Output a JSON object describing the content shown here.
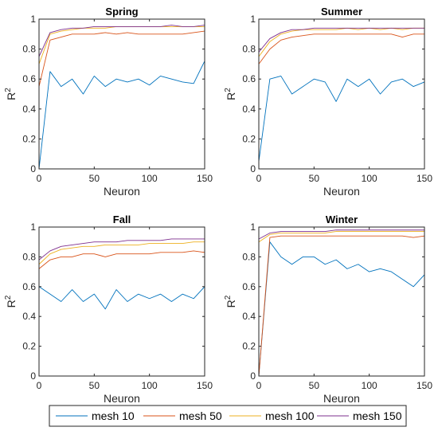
{
  "chart_data": [
    {
      "type": "line",
      "title": "Spring",
      "xlabel": "Neuron",
      "ylabel": "R",
      "ylabel_superscript": "2",
      "xlim": [
        0,
        150
      ],
      "ylim": [
        0,
        1
      ],
      "xticks": [
        "0",
        "50",
        "100",
        "150"
      ],
      "yticks": [
        "0",
        "0.2",
        "0.4",
        "0.6",
        "0.8",
        "1"
      ],
      "grid": false,
      "series": [
        {
          "name": "mesh 10",
          "x": [
            0,
            10,
            20,
            30,
            40,
            50,
            60,
            70,
            80,
            90,
            100,
            110,
            120,
            130,
            140,
            150
          ],
          "y": [
            0.0,
            0.65,
            0.55,
            0.6,
            0.5,
            0.62,
            0.55,
            0.6,
            0.58,
            0.6,
            0.56,
            0.62,
            0.6,
            0.58,
            0.57,
            0.72
          ]
        },
        {
          "name": "mesh 50",
          "x": [
            0,
            10,
            20,
            30,
            40,
            50,
            60,
            70,
            80,
            90,
            100,
            110,
            120,
            130,
            140,
            150
          ],
          "y": [
            0.55,
            0.86,
            0.88,
            0.9,
            0.9,
            0.9,
            0.91,
            0.9,
            0.91,
            0.9,
            0.9,
            0.9,
            0.9,
            0.9,
            0.91,
            0.92
          ]
        },
        {
          "name": "mesh 100",
          "x": [
            0,
            10,
            20,
            30,
            40,
            50,
            60,
            70,
            80,
            90,
            100,
            110,
            120,
            130,
            140,
            150
          ],
          "y": [
            0.7,
            0.9,
            0.92,
            0.93,
            0.94,
            0.94,
            0.94,
            0.95,
            0.95,
            0.95,
            0.95,
            0.95,
            0.95,
            0.95,
            0.95,
            0.95
          ]
        },
        {
          "name": "mesh 150",
          "x": [
            0,
            10,
            20,
            30,
            40,
            50,
            60,
            70,
            80,
            90,
            100,
            110,
            120,
            130,
            140,
            150
          ],
          "y": [
            0.75,
            0.91,
            0.93,
            0.94,
            0.94,
            0.95,
            0.95,
            0.95,
            0.95,
            0.95,
            0.95,
            0.95,
            0.96,
            0.95,
            0.95,
            0.96
          ]
        }
      ]
    },
    {
      "type": "line",
      "title": "Summer",
      "xlabel": "Neuron",
      "ylabel": "R",
      "ylabel_superscript": "2",
      "xlim": [
        0,
        150
      ],
      "ylim": [
        0,
        1
      ],
      "xticks": [
        "0",
        "50",
        "100",
        "150"
      ],
      "yticks": [
        "0",
        "0.2",
        "0.4",
        "0.6",
        "0.8",
        "1"
      ],
      "grid": false,
      "series": [
        {
          "name": "mesh 10",
          "x": [
            0,
            10,
            20,
            30,
            40,
            50,
            60,
            70,
            80,
            90,
            100,
            110,
            120,
            130,
            140,
            150
          ],
          "y": [
            0.05,
            0.6,
            0.62,
            0.5,
            0.55,
            0.6,
            0.58,
            0.45,
            0.6,
            0.55,
            0.6,
            0.5,
            0.58,
            0.6,
            0.55,
            0.58
          ]
        },
        {
          "name": "mesh 50",
          "x": [
            0,
            10,
            20,
            30,
            40,
            50,
            60,
            70,
            80,
            90,
            100,
            110,
            120,
            130,
            140,
            150
          ],
          "y": [
            0.7,
            0.8,
            0.86,
            0.88,
            0.89,
            0.9,
            0.9,
            0.9,
            0.9,
            0.9,
            0.9,
            0.9,
            0.9,
            0.88,
            0.9,
            0.9
          ]
        },
        {
          "name": "mesh 100",
          "x": [
            0,
            10,
            20,
            30,
            40,
            50,
            60,
            70,
            80,
            90,
            100,
            110,
            120,
            130,
            140,
            150
          ],
          "y": [
            0.75,
            0.85,
            0.9,
            0.92,
            0.93,
            0.93,
            0.93,
            0.93,
            0.94,
            0.93,
            0.94,
            0.93,
            0.94,
            0.93,
            0.94,
            0.94
          ]
        },
        {
          "name": "mesh 150",
          "x": [
            0,
            10,
            20,
            30,
            40,
            50,
            60,
            70,
            80,
            90,
            100,
            110,
            120,
            130,
            140,
            150
          ],
          "y": [
            0.78,
            0.87,
            0.91,
            0.93,
            0.93,
            0.94,
            0.94,
            0.94,
            0.94,
            0.94,
            0.94,
            0.94,
            0.94,
            0.94,
            0.94,
            0.94
          ]
        }
      ]
    },
    {
      "type": "line",
      "title": "Fall",
      "xlabel": "Neuron",
      "ylabel": "R",
      "ylabel_superscript": "2",
      "xlim": [
        0,
        150
      ],
      "ylim": [
        0,
        1
      ],
      "xticks": [
        "0",
        "50",
        "100",
        "150"
      ],
      "yticks": [
        "0",
        "0.2",
        "0.4",
        "0.6",
        "0.8",
        "1"
      ],
      "grid": false,
      "series": [
        {
          "name": "mesh 10",
          "x": [
            0,
            10,
            20,
            30,
            40,
            50,
            60,
            70,
            80,
            90,
            100,
            110,
            120,
            130,
            140,
            150
          ],
          "y": [
            0.6,
            0.55,
            0.5,
            0.58,
            0.5,
            0.55,
            0.45,
            0.58,
            0.5,
            0.55,
            0.52,
            0.55,
            0.5,
            0.55,
            0.52,
            0.6
          ]
        },
        {
          "name": "mesh 50",
          "x": [
            0,
            10,
            20,
            30,
            40,
            50,
            60,
            70,
            80,
            90,
            100,
            110,
            120,
            130,
            140,
            150
          ],
          "y": [
            0.72,
            0.78,
            0.8,
            0.8,
            0.82,
            0.82,
            0.8,
            0.82,
            0.82,
            0.82,
            0.82,
            0.83,
            0.83,
            0.83,
            0.84,
            0.83
          ]
        },
        {
          "name": "mesh 100",
          "x": [
            0,
            10,
            20,
            30,
            40,
            50,
            60,
            70,
            80,
            90,
            100,
            110,
            120,
            130,
            140,
            150
          ],
          "y": [
            0.75,
            0.82,
            0.85,
            0.86,
            0.87,
            0.87,
            0.88,
            0.88,
            0.88,
            0.88,
            0.89,
            0.89,
            0.89,
            0.89,
            0.9,
            0.9
          ]
        },
        {
          "name": "mesh 150",
          "x": [
            0,
            10,
            20,
            30,
            40,
            50,
            60,
            70,
            80,
            90,
            100,
            110,
            120,
            130,
            140,
            150
          ],
          "y": [
            0.78,
            0.84,
            0.87,
            0.88,
            0.89,
            0.9,
            0.9,
            0.9,
            0.91,
            0.91,
            0.91,
            0.91,
            0.92,
            0.92,
            0.92,
            0.92
          ]
        }
      ]
    },
    {
      "type": "line",
      "title": "Winter",
      "xlabel": "Neuron",
      "ylabel": "R",
      "ylabel_superscript": "2",
      "xlim": [
        0,
        150
      ],
      "ylim": [
        0,
        1
      ],
      "xticks": [
        "0",
        "50",
        "100",
        "150"
      ],
      "yticks": [
        "0",
        "0.2",
        "0.4",
        "0.6",
        "0.8",
        "1"
      ],
      "grid": false,
      "series": [
        {
          "name": "mesh 10",
          "x": [
            0,
            10,
            20,
            30,
            40,
            50,
            60,
            70,
            80,
            90,
            100,
            110,
            120,
            130,
            140,
            150
          ],
          "y": [
            0.0,
            0.9,
            0.8,
            0.75,
            0.8,
            0.8,
            0.75,
            0.78,
            0.72,
            0.75,
            0.7,
            0.72,
            0.7,
            0.65,
            0.6,
            0.68
          ]
        },
        {
          "name": "mesh 50",
          "x": [
            0,
            10,
            20,
            30,
            40,
            50,
            60,
            70,
            80,
            90,
            100,
            110,
            120,
            130,
            140,
            150
          ],
          "y": [
            0.0,
            0.93,
            0.94,
            0.94,
            0.94,
            0.94,
            0.94,
            0.94,
            0.94,
            0.94,
            0.94,
            0.94,
            0.94,
            0.94,
            0.93,
            0.94
          ]
        },
        {
          "name": "mesh 100",
          "x": [
            0,
            10,
            20,
            30,
            40,
            50,
            60,
            70,
            80,
            90,
            100,
            110,
            120,
            130,
            140,
            150
          ],
          "y": [
            0.9,
            0.95,
            0.96,
            0.96,
            0.96,
            0.96,
            0.96,
            0.97,
            0.97,
            0.97,
            0.97,
            0.97,
            0.97,
            0.97,
            0.97,
            0.97
          ]
        },
        {
          "name": "mesh 150",
          "x": [
            0,
            10,
            20,
            30,
            40,
            50,
            60,
            70,
            80,
            90,
            100,
            110,
            120,
            130,
            140,
            150
          ],
          "y": [
            0.92,
            0.96,
            0.97,
            0.97,
            0.97,
            0.97,
            0.97,
            0.98,
            0.98,
            0.98,
            0.98,
            0.98,
            0.98,
            0.98,
            0.98,
            0.98
          ]
        }
      ]
    }
  ],
  "legend": {
    "placement": "bottom",
    "items": [
      {
        "label": "mesh 10",
        "color": "#0072BD"
      },
      {
        "label": "mesh 50",
        "color": "#D95319"
      },
      {
        "label": "mesh 100",
        "color": "#EDB120"
      },
      {
        "label": "mesh 150",
        "color": "#7E2F8E"
      }
    ]
  },
  "colors": {
    "mesh 10": "#0072BD",
    "mesh 50": "#D95319",
    "mesh 100": "#EDB120",
    "mesh 150": "#7E2F8E"
  }
}
